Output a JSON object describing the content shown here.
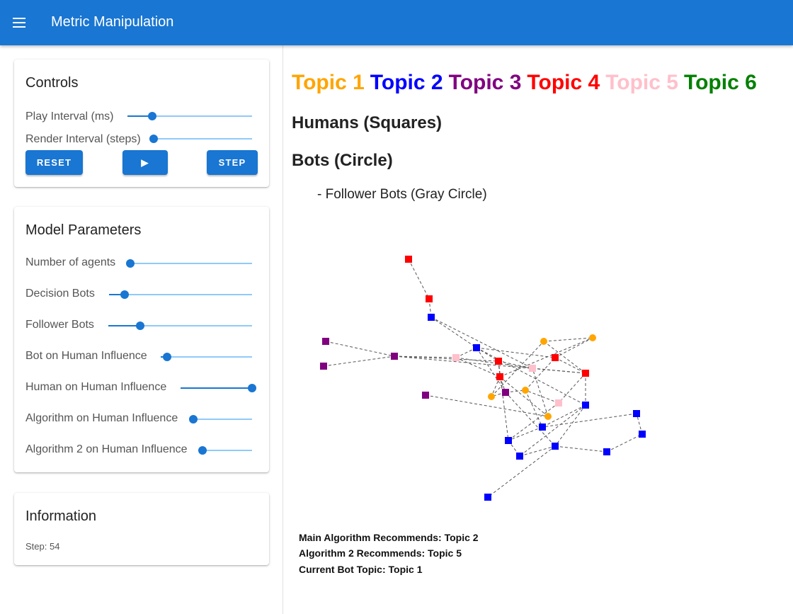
{
  "app": {
    "title": "Metric Manipulation",
    "menu_icon": "menu-icon"
  },
  "controls": {
    "title": "Controls",
    "sliders": [
      {
        "label": "Play Interval (ms)",
        "value": 0.2
      },
      {
        "label": "Render Interval (steps)",
        "value": 0.0
      }
    ],
    "buttons": {
      "reset": "RESET",
      "play": "▶",
      "step": "STEP"
    }
  },
  "model_parameters": {
    "title": "Model Parameters",
    "sliders": [
      {
        "label": "Number of agents",
        "value": 0.0
      },
      {
        "label": "Decision Bots",
        "value": 0.11
      },
      {
        "label": "Follower Bots",
        "value": 0.22
      },
      {
        "label": "Bot on Human Influence",
        "value": 0.07
      },
      {
        "label": "Human on Human Influence",
        "value": 1.0
      },
      {
        "label": "Algorithm on Human Influence",
        "value": 0.0
      },
      {
        "label": "Algorithm 2 on Human Influence",
        "value": 0.0
      }
    ]
  },
  "information": {
    "title": "Information",
    "step": "Step: 54"
  },
  "topics": [
    {
      "label": "Topic 1",
      "color": "#ffa500"
    },
    {
      "label": "Topic 2",
      "color": "#0000ff"
    },
    {
      "label": "Topic 3",
      "color": "#800080"
    },
    {
      "label": "Topic 4",
      "color": "#ff0000"
    },
    {
      "label": "Topic 5",
      "color": "#ffc0cb"
    },
    {
      "label": "Topic 6",
      "color": "#008000"
    }
  ],
  "legend": {
    "humans": "Humans (Squares)",
    "bots": "Bots (Circle)",
    "follower_bots": "- Follower Bots (Gray Circle)"
  },
  "network": {
    "nodes": [
      {
        "id": 1,
        "shape": "square",
        "color": "#ff0000"
      },
      {
        "id": 2,
        "shape": "square",
        "color": "#ff0000"
      },
      {
        "id": 3,
        "shape": "square",
        "color": "#0000ff"
      },
      {
        "id": 4,
        "shape": "square",
        "color": "#800080"
      },
      {
        "id": 5,
        "shape": "square",
        "color": "#800080"
      },
      {
        "id": 6,
        "shape": "square",
        "color": "#800080"
      },
      {
        "id": 7,
        "shape": "square",
        "color": "#ffc0cb"
      },
      {
        "id": 8,
        "shape": "square",
        "color": "#0000ff"
      },
      {
        "id": 9,
        "shape": "square",
        "color": "#ff0000"
      },
      {
        "id": 10,
        "shape": "square",
        "color": "#ff0000"
      },
      {
        "id": 11,
        "shape": "square",
        "color": "#800080"
      },
      {
        "id": 12,
        "shape": "square",
        "color": "#800080"
      },
      {
        "id": 13,
        "shape": "circle",
        "color": "#ffa500"
      },
      {
        "id": 14,
        "shape": "circle",
        "color": "#ffa500"
      },
      {
        "id": 15,
        "shape": "circle",
        "color": "#ffa500"
      },
      {
        "id": 16,
        "shape": "circle",
        "color": "#ffa500"
      },
      {
        "id": 17,
        "shape": "circle",
        "color": "#ffa500"
      },
      {
        "id": 18,
        "shape": "square",
        "color": "#ffc0cb"
      },
      {
        "id": 19,
        "shape": "square",
        "color": "#ff0000"
      },
      {
        "id": 20,
        "shape": "square",
        "color": "#ff0000"
      },
      {
        "id": 21,
        "shape": "square",
        "color": "#ffc0cb"
      },
      {
        "id": 22,
        "shape": "square",
        "color": "#0000ff"
      },
      {
        "id": 23,
        "shape": "square",
        "color": "#0000ff"
      },
      {
        "id": 24,
        "shape": "square",
        "color": "#0000ff"
      },
      {
        "id": 25,
        "shape": "square",
        "color": "#0000ff"
      },
      {
        "id": 26,
        "shape": "square",
        "color": "#0000ff"
      },
      {
        "id": 27,
        "shape": "square",
        "color": "#0000ff"
      },
      {
        "id": 28,
        "shape": "square",
        "color": "#0000ff"
      },
      {
        "id": 29,
        "shape": "square",
        "color": "#0000ff"
      },
      {
        "id": 30,
        "shape": "square",
        "color": "#0000ff"
      }
    ],
    "edges": [
      [
        1,
        2
      ],
      [
        2,
        3
      ],
      [
        3,
        8
      ],
      [
        3,
        18
      ],
      [
        4,
        6
      ],
      [
        5,
        6
      ],
      [
        6,
        7
      ],
      [
        6,
        9
      ],
      [
        6,
        20
      ],
      [
        7,
        8
      ],
      [
        7,
        10
      ],
      [
        7,
        18
      ],
      [
        8,
        9
      ],
      [
        8,
        11
      ],
      [
        8,
        19
      ],
      [
        8,
        22
      ],
      [
        9,
        10
      ],
      [
        9,
        18
      ],
      [
        10,
        11
      ],
      [
        10,
        13
      ],
      [
        10,
        17
      ],
      [
        11,
        13
      ],
      [
        11,
        16
      ],
      [
        11,
        26
      ],
      [
        13,
        14
      ],
      [
        14,
        15
      ],
      [
        14,
        20
      ],
      [
        15,
        19
      ],
      [
        16,
        19
      ],
      [
        16,
        23
      ],
      [
        17,
        18
      ],
      [
        18,
        20
      ],
      [
        19,
        20
      ],
      [
        20,
        21
      ],
      [
        20,
        22
      ],
      [
        21,
        24
      ],
      [
        21,
        16
      ],
      [
        22,
        23
      ],
      [
        22,
        25
      ],
      [
        22,
        26
      ],
      [
        23,
        24
      ],
      [
        24,
        25
      ],
      [
        25,
        26
      ],
      [
        26,
        27
      ],
      [
        26,
        28
      ],
      [
        28,
        29
      ],
      [
        29,
        30
      ],
      [
        30,
        23
      ],
      [
        12,
        17
      ],
      [
        10,
        15
      ],
      [
        9,
        24
      ]
    ]
  },
  "recommendations": {
    "main": "Main Algorithm Recommends: Topic 2",
    "alg2": "Algorithm 2 Recommends: Topic 5",
    "bot_topic": "Current Bot Topic: Topic 1"
  }
}
